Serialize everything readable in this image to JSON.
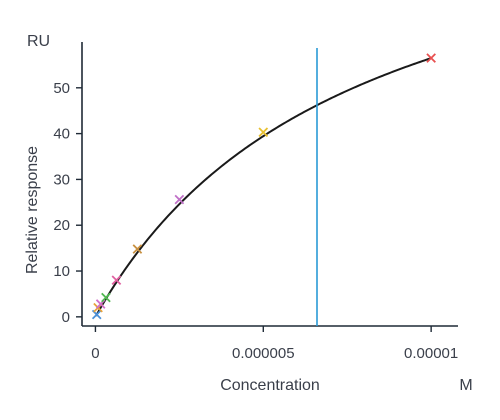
{
  "chart_data": {
    "type": "scatter",
    "y_unit": "RU",
    "ylabel": "Relative response",
    "xlabel": "Concentration",
    "x_unit": "M",
    "xlim": [
      -4e-07,
      1.08e-05
    ],
    "ylim": [
      -2,
      60
    ],
    "x_ticks": [
      0,
      5e-06,
      1e-05
    ],
    "x_tick_labels": [
      "0",
      "0.000005",
      "0.00001"
    ],
    "y_ticks": [
      0,
      10,
      20,
      30,
      40,
      50
    ],
    "y_tick_labels": [
      "0",
      "10",
      "20",
      "30",
      "40",
      "50"
    ],
    "grid": false,
    "points": [
      {
        "x": 3.90625e-08,
        "y": 0.5,
        "color": "#4a90d9"
      },
      {
        "x": 7.8125e-08,
        "y": 2.0,
        "color": "#e8a23a"
      },
      {
        "x": 1.5625e-07,
        "y": 2.8,
        "color": "#d070c8"
      },
      {
        "x": 3.125e-07,
        "y": 4.2,
        "color": "#50b850"
      },
      {
        "x": 6.25e-07,
        "y": 8.0,
        "color": "#e060a0"
      },
      {
        "x": 1.25e-06,
        "y": 14.8,
        "color": "#c89040"
      },
      {
        "x": 2.5e-06,
        "y": 25.6,
        "color": "#c070c8"
      },
      {
        "x": 5e-06,
        "y": 40.3,
        "color": "#e8c030"
      },
      {
        "x": 1e-05,
        "y": 56.5,
        "color": "#e85050"
      }
    ],
    "fit_curve": {
      "model": "one-site binding",
      "Rmax": 99.4,
      "KD": 7.6e-06,
      "color": "#1a1a1a"
    },
    "vertical_line": {
      "x": 6.6e-06,
      "color": "#2a9ad6"
    }
  }
}
